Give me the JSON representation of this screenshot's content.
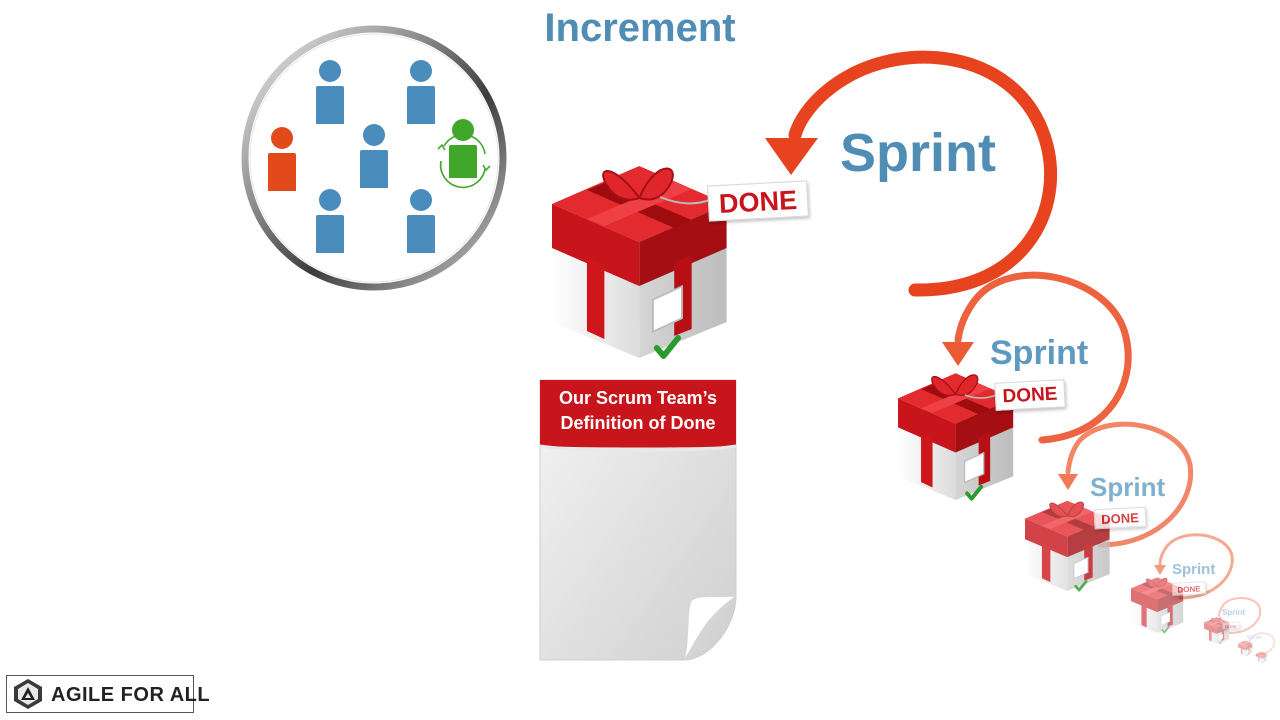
{
  "title": "Increment",
  "sprints": [
    "Sprint",
    "Sprint",
    "Sprint",
    "Sprint",
    "Sprint",
    "Sprint"
  ],
  "done_tag": "DONE",
  "definition_of_done": {
    "line1": "Our Scrum Team’s",
    "line2": "Definition of Done"
  },
  "logo": {
    "text": "AGILE FOR ALL"
  },
  "colors": {
    "title_blue": "#4f8db5",
    "person_blue": "#4a8dbd",
    "person_orange": "#e2491b",
    "person_green": "#41a72b",
    "arrow_red": "#e8431f",
    "gift_red": "#d0161d",
    "check_green": "#2a9a2e",
    "doc_header_red": "#c8151b"
  },
  "icons": {
    "team": "team-circle-icon",
    "gift": "gift-box-icon",
    "check": "checkmark-icon",
    "arrow": "circular-arrow-icon",
    "document": "document-curl-icon",
    "logo": "agile-for-all-logo-icon"
  }
}
